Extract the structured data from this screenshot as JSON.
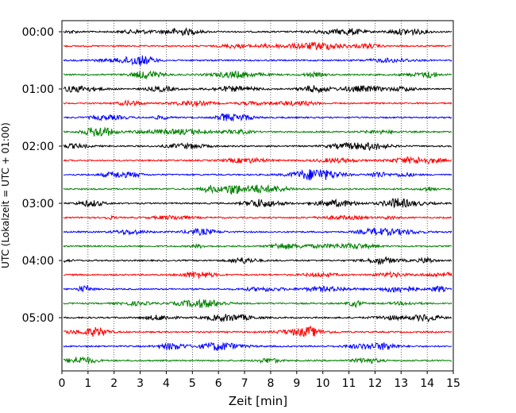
{
  "chart_data": {
    "type": "line",
    "subtype": "seismic-helicorder",
    "xlabel": "Zeit  [min]",
    "ylabel": "UTC (Lokalzeit = UTC + 01:00)",
    "xlim": [
      0,
      15
    ],
    "x_ticks": [
      "0",
      "1",
      "2",
      "3",
      "4",
      "5",
      "6",
      "7",
      "8",
      "9",
      "10",
      "11",
      "12",
      "13",
      "14",
      "15"
    ],
    "y_tick_labels": [
      "00:00",
      "01:00",
      "02:00",
      "03:00",
      "04:00",
      "05:00"
    ],
    "trace_interval_minutes": 15,
    "trace_count": 24,
    "trace_start_times_utc": [
      "00:00",
      "00:15",
      "00:30",
      "00:45",
      "01:00",
      "01:15",
      "01:30",
      "01:45",
      "02:00",
      "02:15",
      "02:30",
      "02:45",
      "03:00",
      "03:15",
      "03:30",
      "03:45",
      "04:00",
      "04:15",
      "04:30",
      "04:45",
      "05:00",
      "05:15",
      "05:30",
      "05:45"
    ],
    "color_cycle": [
      "#000000",
      "#ff0000",
      "#0000ff",
      "#008000"
    ],
    "grid": "vertical-dotted"
  }
}
